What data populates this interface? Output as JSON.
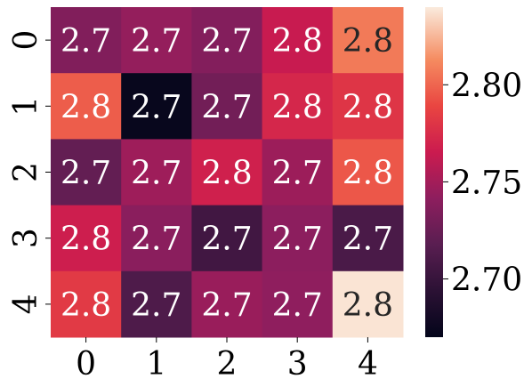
{
  "chart_data": {
    "type": "heatmap",
    "title": "",
    "xlabel": "",
    "ylabel": "",
    "x_categories": [
      "0",
      "1",
      "2",
      "3",
      "4"
    ],
    "y_categories": [
      "0",
      "1",
      "2",
      "3",
      "4"
    ],
    "values": [
      [
        2.736,
        2.744,
        2.737,
        2.764,
        2.807
      ],
      [
        2.797,
        2.673,
        2.729,
        2.772,
        2.78
      ],
      [
        2.722,
        2.748,
        2.768,
        2.747,
        2.795
      ],
      [
        2.767,
        2.74,
        2.705,
        2.741,
        2.71
      ],
      [
        2.783,
        2.712,
        2.746,
        2.742,
        2.838
      ]
    ],
    "annotations": [
      [
        "2.7",
        "2.7",
        "2.7",
        "2.8",
        "2.8"
      ],
      [
        "2.8",
        "2.7",
        "2.7",
        "2.8",
        "2.8"
      ],
      [
        "2.7",
        "2.7",
        "2.8",
        "2.7",
        "2.8"
      ],
      [
        "2.8",
        "2.7",
        "2.7",
        "2.7",
        "2.7"
      ],
      [
        "2.8",
        "2.7",
        "2.7",
        "2.7",
        "2.8"
      ]
    ],
    "colorbar": {
      "min": 2.67,
      "max": 2.84,
      "ticks": [
        2.7,
        2.75,
        2.8
      ],
      "tick_labels": [
        "2.70",
        "2.75",
        "2.80"
      ],
      "colormap": "rocket"
    },
    "grid": false,
    "legend": "none"
  }
}
